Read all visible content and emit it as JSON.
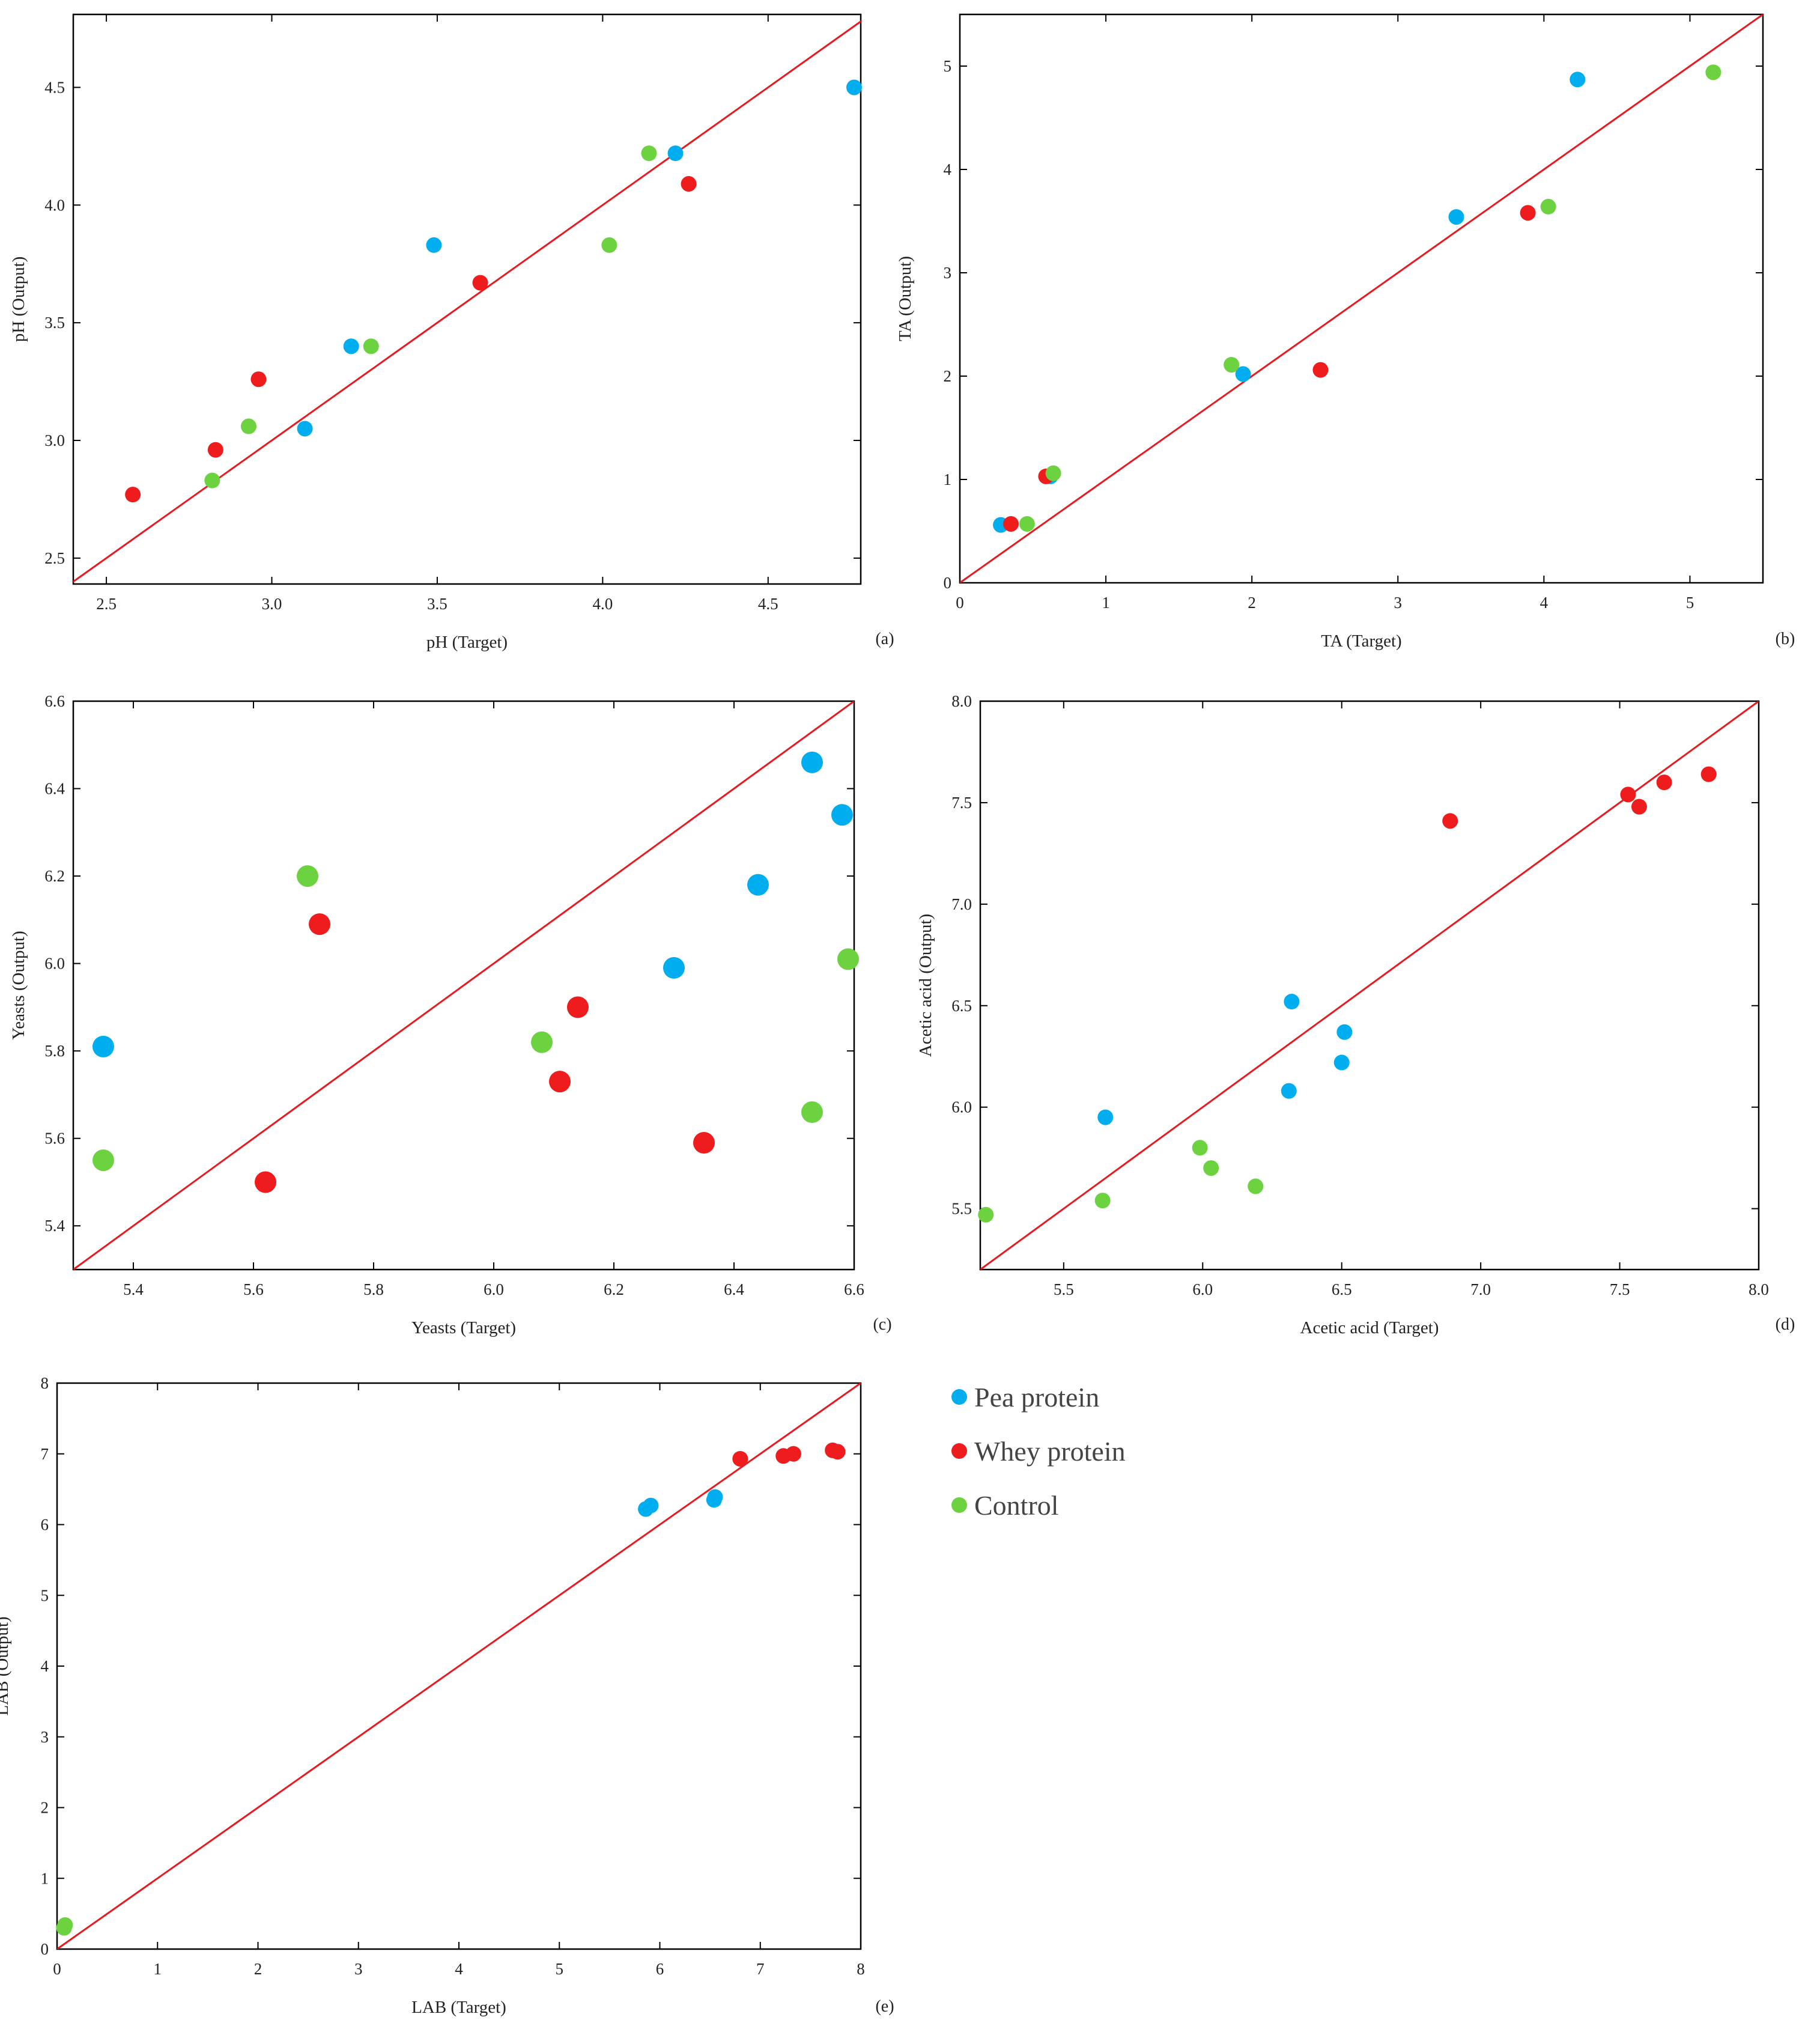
{
  "series_colors": {
    "pea": "#00AEEF",
    "whey": "#EE1C1C",
    "control": "#6CD23F",
    "identity_line": "#E8191F"
  },
  "legend": {
    "items": [
      {
        "key": "pea",
        "label": "Pea protein"
      },
      {
        "key": "whey",
        "label": "Whey protein"
      },
      {
        "key": "control",
        "label": "Control"
      }
    ]
  },
  "chart_data": [
    {
      "type": "scatter",
      "id": "a",
      "panel_label": "(a)",
      "xlabel": "pH (Target)",
      "ylabel": "pH (Output)",
      "xlim": [
        2.4,
        4.78
      ],
      "ylim": [
        2.39,
        4.81
      ],
      "xticks": [
        "2.5",
        "3.0",
        "3.5",
        "4.0",
        "4.5"
      ],
      "yticks": [
        "2.5",
        "3.0",
        "3.5",
        "4.0",
        "4.5"
      ],
      "identity_line": true,
      "series": [
        {
          "name": "Pea protein",
          "key": "pea",
          "points": [
            [
              3.1,
              3.05
            ],
            [
              3.24,
              3.4
            ],
            [
              3.49,
              3.83
            ],
            [
              4.22,
              4.22
            ],
            [
              4.76,
              4.5
            ]
          ]
        },
        {
          "name": "Whey protein",
          "key": "whey",
          "points": [
            [
              2.58,
              2.77
            ],
            [
              2.83,
              2.96
            ],
            [
              2.96,
              3.26
            ],
            [
              3.63,
              3.67
            ],
            [
              4.26,
              4.09
            ]
          ]
        },
        {
          "name": "Control",
          "key": "control",
          "points": [
            [
              2.82,
              2.83
            ],
            [
              2.93,
              3.06
            ],
            [
              3.3,
              3.4
            ],
            [
              4.02,
              3.83
            ],
            [
              4.14,
              4.22
            ]
          ]
        }
      ]
    },
    {
      "type": "scatter",
      "id": "b",
      "panel_label": "(b)",
      "xlabel": "TA (Target)",
      "ylabel": "TA (Output)",
      "xlim": [
        0,
        5.5
      ],
      "ylim": [
        0,
        5.5
      ],
      "xticks": [
        "0",
        "1",
        "2",
        "3",
        "4",
        "5"
      ],
      "yticks": [
        "0",
        "1",
        "2",
        "3",
        "4",
        "5"
      ],
      "identity_line": true,
      "series": [
        {
          "name": "Pea protein",
          "key": "pea",
          "points": [
            [
              0.28,
              0.56
            ],
            [
              0.62,
              1.03
            ],
            [
              1.94,
              2.02
            ],
            [
              3.4,
              3.54
            ],
            [
              4.23,
              4.87
            ]
          ]
        },
        {
          "name": "Whey protein",
          "key": "whey",
          "points": [
            [
              0.35,
              0.57
            ],
            [
              0.59,
              1.03
            ],
            [
              2.47,
              2.06
            ],
            [
              3.89,
              3.58
            ]
          ]
        },
        {
          "name": "Control",
          "key": "control",
          "points": [
            [
              0.46,
              0.57
            ],
            [
              0.64,
              1.06
            ],
            [
              1.86,
              2.11
            ],
            [
              4.03,
              3.64
            ],
            [
              5.16,
              4.94
            ]
          ]
        }
      ]
    },
    {
      "type": "scatter",
      "id": "c",
      "panel_label": "(c)",
      "xlabel": "Yeasts (Target)",
      "ylabel": "Yeasts (Output)",
      "xlim": [
        5.3,
        6.6
      ],
      "ylim": [
        5.3,
        6.6
      ],
      "xticks": [
        "5.4",
        "5.6",
        "5.8",
        "6.0",
        "6.2",
        "6.4",
        "6.6"
      ],
      "yticks": [
        "5.4",
        "5.6",
        "5.8",
        "6.0",
        "6.2",
        "6.4",
        "6.6"
      ],
      "identity_line": true,
      "series": [
        {
          "name": "Pea protein",
          "key": "pea",
          "points": [
            [
              5.35,
              5.81
            ],
            [
              6.3,
              5.99
            ],
            [
              6.44,
              6.18
            ],
            [
              6.53,
              6.46
            ],
            [
              6.58,
              6.34
            ]
          ]
        },
        {
          "name": "Whey protein",
          "key": "whey",
          "points": [
            [
              5.62,
              5.5
            ],
            [
              5.71,
              6.09
            ],
            [
              6.11,
              5.73
            ],
            [
              6.14,
              5.9
            ],
            [
              6.35,
              5.59
            ]
          ]
        },
        {
          "name": "Control",
          "key": "control",
          "points": [
            [
              5.35,
              5.55
            ],
            [
              5.69,
              6.2
            ],
            [
              6.08,
              5.82
            ],
            [
              6.53,
              5.66
            ],
            [
              6.59,
              6.01
            ]
          ]
        }
      ]
    },
    {
      "type": "scatter",
      "id": "d",
      "panel_label": "(d)",
      "xlabel": "Acetic acid (Target)",
      "ylabel": "Acetic acid (Output)",
      "xlim": [
        5.2,
        8.0
      ],
      "ylim": [
        5.2,
        8.0
      ],
      "xticks": [
        "5.5",
        "6.0",
        "6.5",
        "7.0",
        "7.5",
        "8.0"
      ],
      "yticks": [
        "5.5",
        "6.0",
        "6.5",
        "7.0",
        "7.5",
        "8.0"
      ],
      "identity_line": true,
      "series": [
        {
          "name": "Pea protein",
          "key": "pea",
          "points": [
            [
              5.65,
              5.95
            ],
            [
              6.31,
              6.08
            ],
            [
              6.32,
              6.52
            ],
            [
              6.5,
              6.22
            ],
            [
              6.51,
              6.37
            ]
          ]
        },
        {
          "name": "Whey protein",
          "key": "whey",
          "points": [
            [
              6.89,
              7.41
            ],
            [
              7.53,
              7.54
            ],
            [
              7.57,
              7.48
            ],
            [
              7.66,
              7.6
            ],
            [
              7.82,
              7.64
            ]
          ]
        },
        {
          "name": "Control",
          "key": "control",
          "points": [
            [
              5.22,
              5.47
            ],
            [
              5.64,
              5.54
            ],
            [
              5.99,
              5.8
            ],
            [
              6.03,
              5.7
            ],
            [
              6.19,
              5.61
            ]
          ]
        }
      ]
    },
    {
      "type": "scatter",
      "id": "e",
      "panel_label": "(e)",
      "xlabel": "LAB (Target)",
      "ylabel": "LAB (Output)",
      "xlim": [
        0,
        8
      ],
      "ylim": [
        0,
        8
      ],
      "xticks": [
        "0",
        "1",
        "2",
        "3",
        "4",
        "5",
        "6",
        "7",
        "8"
      ],
      "yticks": [
        "0",
        "1",
        "2",
        "3",
        "4",
        "5",
        "6",
        "7",
        "8"
      ],
      "identity_line": true,
      "series": [
        {
          "name": "Pea protein",
          "key": "pea",
          "points": [
            [
              5.86,
              6.22
            ],
            [
              5.91,
              6.27
            ],
            [
              6.54,
              6.35
            ],
            [
              6.55,
              6.39
            ]
          ]
        },
        {
          "name": "Whey protein",
          "key": "whey",
          "points": [
            [
              6.8,
              6.93
            ],
            [
              7.23,
              6.97
            ],
            [
              7.33,
              7.0
            ],
            [
              7.72,
              7.05
            ],
            [
              7.77,
              7.03
            ]
          ]
        },
        {
          "name": "Control",
          "key": "control",
          "points": [
            [
              0.07,
              0.3
            ],
            [
              0.08,
              0.34
            ]
          ]
        }
      ]
    }
  ]
}
